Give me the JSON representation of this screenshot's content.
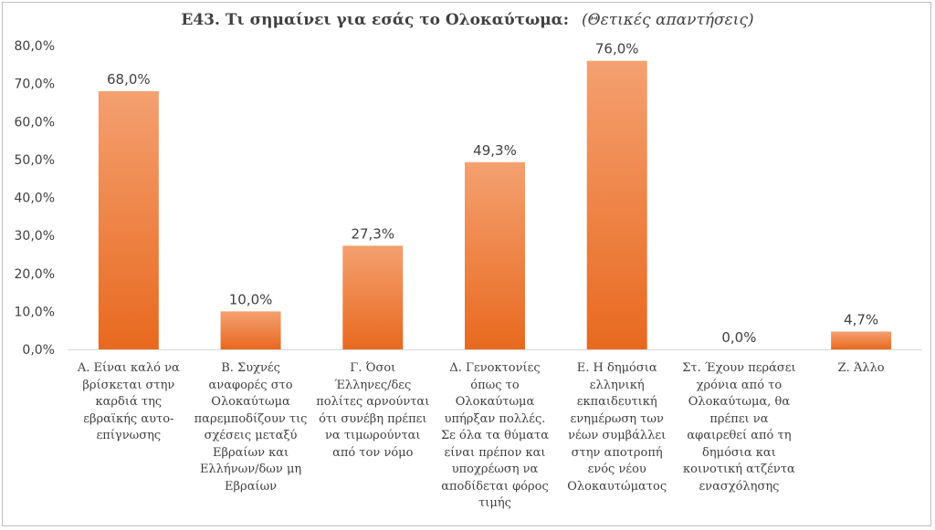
{
  "chart_data": {
    "type": "bar",
    "title": "Ε43. Τι σημαίνει για εσάς το Ολοκαύτωμα:",
    "subtitle": "(Θετικές απαντήσεις)",
    "categories": [
      "Α. Είναι καλό να βρίσκεται στην καρδιά της εβραϊκής αυτο-επίγνωσης",
      "Β. Συχνές αναφορές στο Ολοκαύτωμα παρεμποδίζουν τις σχέσεις μεταξύ Εβραίων και Ελλήνων/δων μη Εβραίων",
      "Γ. Όσοι Έλληνες/δες πολίτες αρνούνται ότι συνέβη πρέπει να τιμωρούνται από τον νόμο",
      "Δ. Γενοκτονίες όπως το Ολοκαύτωμα υπήρξαν πολλές. Σε όλα τα θύματα είναι πρέπον και υποχρέωση να αποδίδεται φόρος τιμής",
      "Ε. Η δημόσια ελληνική εκπαιδευτική ενημέρωση των νέων συμβάλλει στην αποτροπή ενός νέου Ολοκαυτώματος",
      "Στ. Έχουν περάσει χρόνια από το Ολοκαύτωμα, θα πρέπει να αφαιρεθεί από τη δημόσια και κοινοτική ατζέντα ενασχόλησης",
      "Ζ. Άλλο"
    ],
    "category_lines": [
      [
        "Α. Είναι καλό να",
        "βρίσκεται στην",
        "καρδιά της",
        "εβραϊκής αυτο-",
        "επίγνωσης"
      ],
      [
        "Β. Συχνές",
        "αναφορές στο",
        "Ολοκαύτωμα",
        "παρεμποδίζουν τις",
        "σχέσεις μεταξύ",
        "Εβραίων και",
        "Ελλήνων/δων μη",
        "Εβραίων"
      ],
      [
        "Γ. Όσοι",
        "Έλληνες/δες",
        "πολίτες αρνούνται",
        "ότι συνέβη πρέπει",
        "να τιμωρούνται",
        "από τον νόμο"
      ],
      [
        "Δ. Γενοκτονίες",
        "όπως το",
        "Ολοκαύτωμα",
        "υπήρξαν πολλές.",
        "Σε όλα τα θύματα",
        "είναι πρέπον και",
        "υποχρέωση να",
        "αποδίδεται φόρος",
        "τιμής"
      ],
      [
        "Ε. Η δημόσια",
        "ελληνική",
        "εκπαιδευτική",
        "ενημέρωση των",
        "νέων συμβάλλει",
        "στην αποτροπή",
        "ενός νέου",
        "Ολοκαυτώματος"
      ],
      [
        "Στ. Έχουν περάσει",
        "χρόνια από το",
        "Ολοκαύτωμα, θα",
        "πρέπει να",
        "αφαιρεθεί από τη",
        "δημόσια και",
        "κοινοτική ατζέντα",
        "ενασχόλησης"
      ],
      [
        "Ζ. Άλλο"
      ]
    ],
    "values": [
      68.0,
      10.0,
      27.3,
      49.3,
      76.0,
      0.0,
      4.7
    ],
    "data_labels": [
      "68,0%",
      "10,0%",
      "27,3%",
      "49,3%",
      "76,0%",
      "0,0%",
      "4,7%"
    ],
    "y_ticks": [
      "0,0%",
      "10,0%",
      "20,0%",
      "30,0%",
      "40,0%",
      "50,0%",
      "60,0%",
      "70,0%",
      "80,0%"
    ],
    "ylim": [
      0,
      80
    ],
    "xlabel": "",
    "ylabel": "",
    "grid": false,
    "legend": "none",
    "colors": {
      "bar_top": "#f4a070",
      "bar_bottom": "#e8691f",
      "axis": "#d9d9d9",
      "text": "#404040"
    }
  }
}
